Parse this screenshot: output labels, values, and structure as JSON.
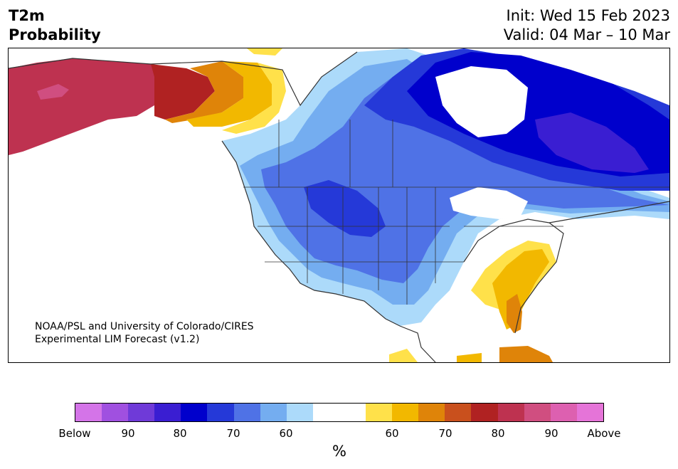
{
  "title_left": [
    "T2m",
    "Probability"
  ],
  "title_right": [
    "Init: Wed 15 Feb 2023",
    "Valid: 04 Mar – 10 Mar"
  ],
  "credit": [
    "NOAA/PSL and University of Colorado/CIRES",
    "Experimental LIM Forecast (v1.2)"
  ],
  "colorbar": {
    "colors": [
      "#d474e8",
      "#a050e0",
      "#6f3ad8",
      "#3a1ed2",
      "#0000cc",
      "#2539d8",
      "#4f72e6",
      "#74adf0",
      "#acdafa",
      "#ffffff",
      "#ffffff",
      "#ffe14a",
      "#f2b800",
      "#df8409",
      "#c9501d",
      "#b02222",
      "#be3250",
      "#d04e80",
      "#dd60b0",
      "#e574d8"
    ],
    "tick_labels": [
      "Below",
      "90",
      "80",
      "70",
      "60",
      "60",
      "70",
      "80",
      "90",
      "Above"
    ],
    "unit_label": "%"
  },
  "map_colors": {
    "below_90": "#3a1ed2",
    "below_80": "#0000cc",
    "below_70": "#2539d8",
    "below_60": "#4f72e6",
    "below_50": "#74adf0",
    "below_40": "#acdafa",
    "above_60": "#ffe14a",
    "above_65": "#f2b800",
    "above_70": "#df8409",
    "above_80": "#b02222",
    "above_85": "#be3250",
    "above_90": "#d04e80",
    "outline": "#333333"
  }
}
